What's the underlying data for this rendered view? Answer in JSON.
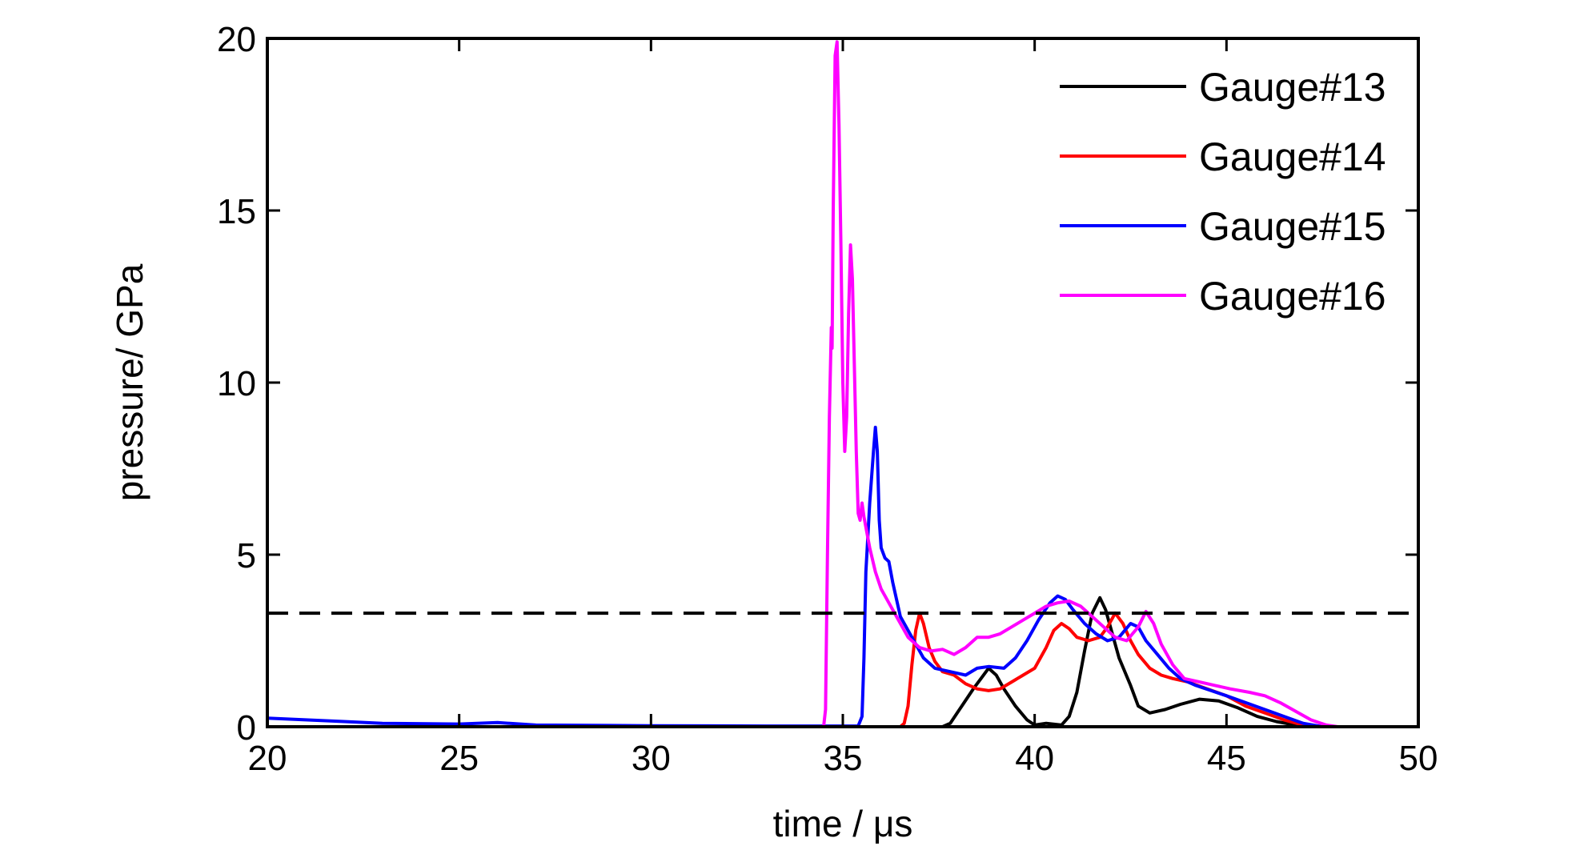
{
  "chart_data": {
    "type": "line",
    "xlabel": "time / μs",
    "ylabel": "pressure/ GPa",
    "xlim": [
      20,
      50
    ],
    "ylim": [
      0,
      20
    ],
    "xticks": [
      20,
      25,
      30,
      35,
      40,
      45,
      50
    ],
    "yticks": [
      0,
      5,
      10,
      15,
      20
    ],
    "grid": false,
    "legend_position": "top-right",
    "reference_line": {
      "y": 3.3,
      "style": "dashed",
      "color": "#000000"
    },
    "series": [
      {
        "name": "Gauge#13",
        "color": "#000000",
        "points": [
          [
            20,
            0
          ],
          [
            37.6,
            0
          ],
          [
            37.8,
            0.1
          ],
          [
            38.1,
            0.6
          ],
          [
            38.4,
            1.1
          ],
          [
            38.6,
            1.4
          ],
          [
            38.8,
            1.7
          ],
          [
            39.0,
            1.5
          ],
          [
            39.2,
            1.1
          ],
          [
            39.5,
            0.6
          ],
          [
            39.8,
            0.2
          ],
          [
            40.0,
            0.05
          ],
          [
            40.3,
            0.1
          ],
          [
            40.7,
            0.05
          ],
          [
            40.9,
            0.3
          ],
          [
            41.1,
            1.0
          ],
          [
            41.3,
            2.2
          ],
          [
            41.5,
            3.3
          ],
          [
            41.7,
            3.75
          ],
          [
            41.85,
            3.4
          ],
          [
            42.0,
            2.8
          ],
          [
            42.2,
            2.0
          ],
          [
            42.5,
            1.2
          ],
          [
            42.7,
            0.6
          ],
          [
            43.0,
            0.4
          ],
          [
            43.4,
            0.5
          ],
          [
            43.8,
            0.65
          ],
          [
            44.3,
            0.8
          ],
          [
            44.8,
            0.75
          ],
          [
            45.3,
            0.55
          ],
          [
            45.8,
            0.3
          ],
          [
            46.3,
            0.15
          ],
          [
            46.8,
            0.05
          ],
          [
            47.5,
            0
          ],
          [
            50,
            0
          ]
        ]
      },
      {
        "name": "Gauge#14",
        "color": "#ff0000",
        "points": [
          [
            20,
            0
          ],
          [
            36.5,
            0
          ],
          [
            36.6,
            0.1
          ],
          [
            36.7,
            0.6
          ],
          [
            36.8,
            1.8
          ],
          [
            36.9,
            2.8
          ],
          [
            37.0,
            3.3
          ],
          [
            37.1,
            3.0
          ],
          [
            37.25,
            2.3
          ],
          [
            37.4,
            1.9
          ],
          [
            37.6,
            1.6
          ],
          [
            37.9,
            1.5
          ],
          [
            38.2,
            1.25
          ],
          [
            38.5,
            1.1
          ],
          [
            38.8,
            1.05
          ],
          [
            39.1,
            1.1
          ],
          [
            39.4,
            1.3
          ],
          [
            39.7,
            1.5
          ],
          [
            40.0,
            1.7
          ],
          [
            40.3,
            2.3
          ],
          [
            40.5,
            2.8
          ],
          [
            40.7,
            3.0
          ],
          [
            40.9,
            2.85
          ],
          [
            41.1,
            2.6
          ],
          [
            41.4,
            2.5
          ],
          [
            41.7,
            2.6
          ],
          [
            41.9,
            2.9
          ],
          [
            42.1,
            3.3
          ],
          [
            42.3,
            3.0
          ],
          [
            42.5,
            2.5
          ],
          [
            42.7,
            2.1
          ],
          [
            43.0,
            1.7
          ],
          [
            43.3,
            1.5
          ],
          [
            43.6,
            1.4
          ],
          [
            44.0,
            1.3
          ],
          [
            44.5,
            1.1
          ],
          [
            45.0,
            0.9
          ],
          [
            45.5,
            0.6
          ],
          [
            46.0,
            0.4
          ],
          [
            46.5,
            0.2
          ],
          [
            47.0,
            0.05
          ],
          [
            47.3,
            0
          ],
          [
            50,
            0
          ]
        ]
      },
      {
        "name": "Gauge#15",
        "color": "#0000ff",
        "points": [
          [
            20,
            0.25
          ],
          [
            21,
            0.2
          ],
          [
            22,
            0.15
          ],
          [
            23,
            0.1
          ],
          [
            25,
            0.08
          ],
          [
            26,
            0.12
          ],
          [
            27,
            0.05
          ],
          [
            30,
            0.03
          ],
          [
            33,
            0.02
          ],
          [
            35.4,
            0.02
          ],
          [
            35.5,
            0.3
          ],
          [
            35.55,
            2.0
          ],
          [
            35.6,
            4.5
          ],
          [
            35.7,
            6.5
          ],
          [
            35.8,
            8.0
          ],
          [
            35.85,
            8.7
          ],
          [
            35.9,
            8.0
          ],
          [
            35.95,
            6.0
          ],
          [
            36.0,
            5.2
          ],
          [
            36.1,
            4.9
          ],
          [
            36.2,
            4.8
          ],
          [
            36.3,
            4.2
          ],
          [
            36.5,
            3.2
          ],
          [
            36.8,
            2.6
          ],
          [
            37.1,
            2.0
          ],
          [
            37.4,
            1.7
          ],
          [
            37.8,
            1.6
          ],
          [
            38.2,
            1.5
          ],
          [
            38.5,
            1.7
          ],
          [
            38.8,
            1.75
          ],
          [
            39.2,
            1.7
          ],
          [
            39.5,
            2.0
          ],
          [
            39.8,
            2.5
          ],
          [
            40.1,
            3.1
          ],
          [
            40.4,
            3.6
          ],
          [
            40.6,
            3.8
          ],
          [
            40.8,
            3.7
          ],
          [
            41.0,
            3.4
          ],
          [
            41.3,
            3.0
          ],
          [
            41.6,
            2.7
          ],
          [
            41.9,
            2.5
          ],
          [
            42.2,
            2.6
          ],
          [
            42.5,
            3.0
          ],
          [
            42.7,
            2.9
          ],
          [
            42.9,
            2.5
          ],
          [
            43.2,
            2.1
          ],
          [
            43.5,
            1.7
          ],
          [
            43.8,
            1.4
          ],
          [
            44.2,
            1.2
          ],
          [
            44.6,
            1.05
          ],
          [
            45.0,
            0.9
          ],
          [
            45.5,
            0.7
          ],
          [
            46.0,
            0.5
          ],
          [
            46.5,
            0.3
          ],
          [
            47.0,
            0.1
          ],
          [
            47.5,
            0
          ],
          [
            50,
            0
          ]
        ]
      },
      {
        "name": "Gauge#16",
        "color": "#ff00ff",
        "points": [
          [
            20,
            0
          ],
          [
            25,
            0
          ],
          [
            30,
            0
          ],
          [
            34.5,
            0
          ],
          [
            34.55,
            0.5
          ],
          [
            34.6,
            5.0
          ],
          [
            34.65,
            9.0
          ],
          [
            34.7,
            11.6
          ],
          [
            34.72,
            11.0
          ],
          [
            34.75,
            15.0
          ],
          [
            34.8,
            19.5
          ],
          [
            34.85,
            19.9
          ],
          [
            34.9,
            17.5
          ],
          [
            34.95,
            14.0
          ],
          [
            35.0,
            10.0
          ],
          [
            35.05,
            8.0
          ],
          [
            35.1,
            9.0
          ],
          [
            35.15,
            12.0
          ],
          [
            35.2,
            14.0
          ],
          [
            35.25,
            13.0
          ],
          [
            35.3,
            10.5
          ],
          [
            35.35,
            8.0
          ],
          [
            35.4,
            6.2
          ],
          [
            35.45,
            6.0
          ],
          [
            35.5,
            6.5
          ],
          [
            35.55,
            6.1
          ],
          [
            35.7,
            5.2
          ],
          [
            35.85,
            4.5
          ],
          [
            36.0,
            4.0
          ],
          [
            36.2,
            3.6
          ],
          [
            36.4,
            3.2
          ],
          [
            36.7,
            2.6
          ],
          [
            37.0,
            2.3
          ],
          [
            37.3,
            2.2
          ],
          [
            37.6,
            2.25
          ],
          [
            37.9,
            2.1
          ],
          [
            38.2,
            2.3
          ],
          [
            38.5,
            2.6
          ],
          [
            38.8,
            2.6
          ],
          [
            39.1,
            2.7
          ],
          [
            39.4,
            2.9
          ],
          [
            39.7,
            3.1
          ],
          [
            40.0,
            3.3
          ],
          [
            40.3,
            3.5
          ],
          [
            40.6,
            3.6
          ],
          [
            40.9,
            3.65
          ],
          [
            41.2,
            3.5
          ],
          [
            41.5,
            3.2
          ],
          [
            41.8,
            2.9
          ],
          [
            42.1,
            2.6
          ],
          [
            42.4,
            2.5
          ],
          [
            42.7,
            2.9
          ],
          [
            42.9,
            3.35
          ],
          [
            43.1,
            3.0
          ],
          [
            43.3,
            2.4
          ],
          [
            43.6,
            1.8
          ],
          [
            43.9,
            1.4
          ],
          [
            44.3,
            1.3
          ],
          [
            44.7,
            1.2
          ],
          [
            45.1,
            1.1
          ],
          [
            45.6,
            1.0
          ],
          [
            46.0,
            0.9
          ],
          [
            46.4,
            0.7
          ],
          [
            46.8,
            0.45
          ],
          [
            47.2,
            0.2
          ],
          [
            47.6,
            0.05
          ],
          [
            47.9,
            0
          ],
          [
            50,
            0
          ]
        ]
      }
    ]
  }
}
